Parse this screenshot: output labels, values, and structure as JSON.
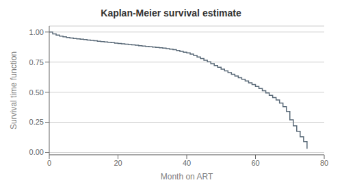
{
  "chart_data": {
    "type": "step",
    "title": "Kaplan-Meier survival estimate",
    "xlabel": "Month on ART",
    "ylabel": "Survival time function",
    "color": "#5a6a78",
    "grid": "y",
    "xlim": [
      0,
      80
    ],
    "ylim": [
      -0.02,
      1.05
    ],
    "xticks": [
      0,
      20,
      40,
      60,
      80
    ],
    "yticks": [
      {
        "value": 0.0,
        "label": "0.00"
      },
      {
        "value": 0.25,
        "label": "0.25"
      },
      {
        "value": 0.5,
        "label": "0.50"
      },
      {
        "value": 0.75,
        "label": "0.75"
      },
      {
        "value": 1.0,
        "label": "1.00"
      }
    ],
    "x": [
      0,
      1,
      2,
      3,
      4,
      5,
      6,
      7,
      8,
      9,
      10,
      11,
      12,
      13,
      14,
      15,
      16,
      17,
      18,
      19,
      20,
      21,
      22,
      23,
      24,
      25,
      26,
      27,
      28,
      29,
      30,
      31,
      32,
      33,
      34,
      35,
      36,
      37,
      38,
      39,
      40,
      41,
      42,
      43,
      44,
      45,
      46,
      47,
      48,
      49,
      50,
      51,
      52,
      53,
      54,
      55,
      56,
      57,
      58,
      59,
      60,
      61,
      62,
      63,
      64,
      65,
      66,
      67,
      68,
      69,
      70,
      71,
      72,
      73,
      74,
      75
    ],
    "values": [
      1.0,
      0.985,
      0.974,
      0.966,
      0.96,
      0.955,
      0.95,
      0.946,
      0.943,
      0.94,
      0.937,
      0.934,
      0.93,
      0.927,
      0.924,
      0.921,
      0.918,
      0.915,
      0.912,
      0.908,
      0.905,
      0.902,
      0.899,
      0.896,
      0.893,
      0.89,
      0.887,
      0.884,
      0.881,
      0.878,
      0.875,
      0.872,
      0.869,
      0.866,
      0.862,
      0.858,
      0.853,
      0.847,
      0.84,
      0.833,
      0.826,
      0.816,
      0.805,
      0.793,
      0.78,
      0.766,
      0.752,
      0.737,
      0.722,
      0.707,
      0.692,
      0.677,
      0.663,
      0.649,
      0.635,
      0.621,
      0.607,
      0.593,
      0.578,
      0.563,
      0.548,
      0.53,
      0.512,
      0.493,
      0.474,
      0.455,
      0.435,
      0.41,
      0.38,
      0.34,
      0.27,
      0.22,
      0.175,
      0.13,
      0.09,
      0.03
    ]
  }
}
